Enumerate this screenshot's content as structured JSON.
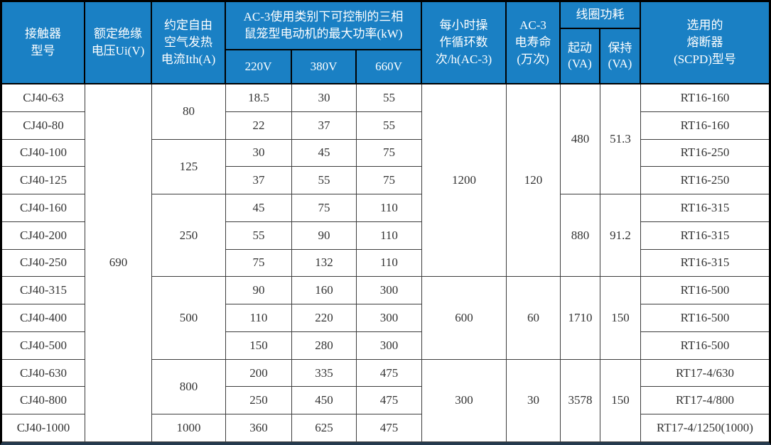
{
  "header": {
    "model": "接触器\n型号",
    "insulation": "额定绝缘\n电压Ui(V)",
    "thermal": "约定自由\n空气发热\n电流Ith(A)",
    "kw_title": "AC-3使用类别下可控制的三相\n鼠笼型电动机的最大功率(kW)",
    "kw_cols": [
      "220V",
      "380V",
      "660V"
    ],
    "cycles": "每小时操\n作循环数\n次/h(AC-3)",
    "life": "AC-3\n电寿命\n(万次)",
    "coil_title": "线圈功耗",
    "coil_start": "起动\n(VA)",
    "coil_hold": "保持\n(VA)",
    "fuse": "选用的\n熔断器\n(SCPD)型号"
  },
  "body": {
    "models": [
      "CJ40-63",
      "CJ40-80",
      "CJ40-100",
      "CJ40-125",
      "CJ40-160",
      "CJ40-200",
      "CJ40-250",
      "CJ40-315",
      "CJ40-400",
      "CJ40-500",
      "CJ40-630",
      "CJ40-800",
      "CJ40-1000"
    ],
    "insulation_voltage": "690",
    "thermal_current": [
      {
        "value": "80",
        "rows": 2
      },
      {
        "value": "125",
        "rows": 2
      },
      {
        "value": "250",
        "rows": 3
      },
      {
        "value": "500",
        "rows": 3
      },
      {
        "value": "800",
        "rows": 2
      },
      {
        "value": "1000",
        "rows": 1
      }
    ],
    "kw_220": [
      "18.5",
      "22",
      "30",
      "37",
      "45",
      "55",
      "75",
      "90",
      "110",
      "150",
      "200",
      "250",
      "360"
    ],
    "kw_380": [
      "30",
      "37",
      "45",
      "55",
      "75",
      "90",
      "132",
      "160",
      "220",
      "280",
      "335",
      "450",
      "625"
    ],
    "kw_660": [
      "55",
      "55",
      "75",
      "75",
      "110",
      "110",
      "110",
      "300",
      "300",
      "300",
      "475",
      "475",
      "475"
    ],
    "cycles_per_hour": [
      {
        "value": "1200",
        "rows": 7
      },
      {
        "value": "600",
        "rows": 3
      },
      {
        "value": "300",
        "rows": 3
      }
    ],
    "electrical_life": [
      {
        "value": "120",
        "rows": 7
      },
      {
        "value": "60",
        "rows": 3
      },
      {
        "value": "30",
        "rows": 3
      }
    ],
    "coil_start_va": [
      {
        "value": "480",
        "rows": 4
      },
      {
        "value": "880",
        "rows": 3
      },
      {
        "value": "1710",
        "rows": 3
      },
      {
        "value": "3578",
        "rows": 3
      }
    ],
    "coil_hold_va": [
      {
        "value": "51.3",
        "rows": 4
      },
      {
        "value": "91.2",
        "rows": 3
      },
      {
        "value": "150",
        "rows": 3
      },
      {
        "value": "150",
        "rows": 3
      }
    ],
    "fuses": [
      "RT16-160",
      "RT16-160",
      "RT16-250",
      "RT16-250",
      "RT16-315",
      "RT16-315",
      "RT16-315",
      "RT16-500",
      "RT16-500",
      "RT16-500",
      "RT17-4/630",
      "RT17-4/800",
      "RT17-4/1250(1000)"
    ]
  },
  "colors": {
    "header_bg": "#1a80c4",
    "header_text": "#ffffff",
    "grid_line": "#000000",
    "body_text": "#333333",
    "bottom_bar": "#253a4e"
  }
}
